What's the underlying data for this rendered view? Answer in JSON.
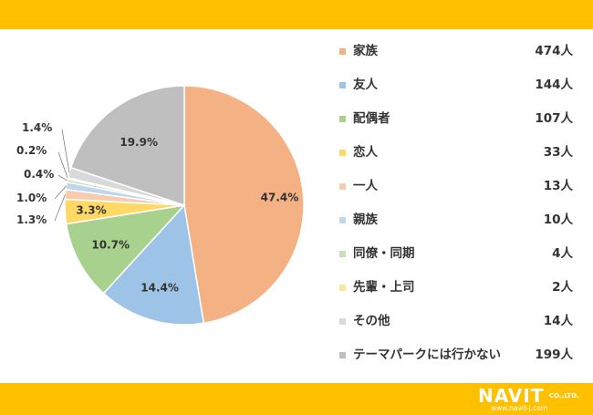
{
  "chart_data": {
    "type": "pie",
    "slices": [
      {
        "label": "家族",
        "count": "474人",
        "percent": "47.4%",
        "value": 47.4,
        "color": "#F4B183"
      },
      {
        "label": "友人",
        "count": "144人",
        "percent": "14.4%",
        "value": 14.4,
        "color": "#9DC3E6"
      },
      {
        "label": "配偶者",
        "count": "107人",
        "percent": "10.7%",
        "value": 10.7,
        "color": "#A9D18E"
      },
      {
        "label": "恋人",
        "count": "33人",
        "percent": "3.3%",
        "value": 3.3,
        "color": "#FFD966"
      },
      {
        "label": "一人",
        "count": "13人",
        "percent": "1.3%",
        "value": 1.3,
        "color": "#F8CBAD"
      },
      {
        "label": "親族",
        "count": "10人",
        "percent": "1.0%",
        "value": 1.0,
        "color": "#BDD7EE"
      },
      {
        "label": "同僚・同期",
        "count": "4人",
        "percent": "0.4%",
        "value": 0.4,
        "color": "#C5E0B4"
      },
      {
        "label": "先輩・上司",
        "count": "2人",
        "percent": "0.2%",
        "value": 0.2,
        "color": "#FFE699"
      },
      {
        "label": "その他",
        "count": "14人",
        "percent": "1.4%",
        "value": 1.4,
        "color": "#D9D9D9"
      },
      {
        "label": "テーマパークには行かない",
        "count": "199人",
        "percent": "19.9%",
        "value": 19.9,
        "color": "#BFBFBF"
      }
    ],
    "legend_position": "right"
  },
  "branding": {
    "logo_text": "NAVIT",
    "logo_suffix": "CO.,LTD.",
    "url": "www.navit-j.com"
  },
  "colors": {
    "banner": "#FFC000",
    "text": "#333333"
  }
}
